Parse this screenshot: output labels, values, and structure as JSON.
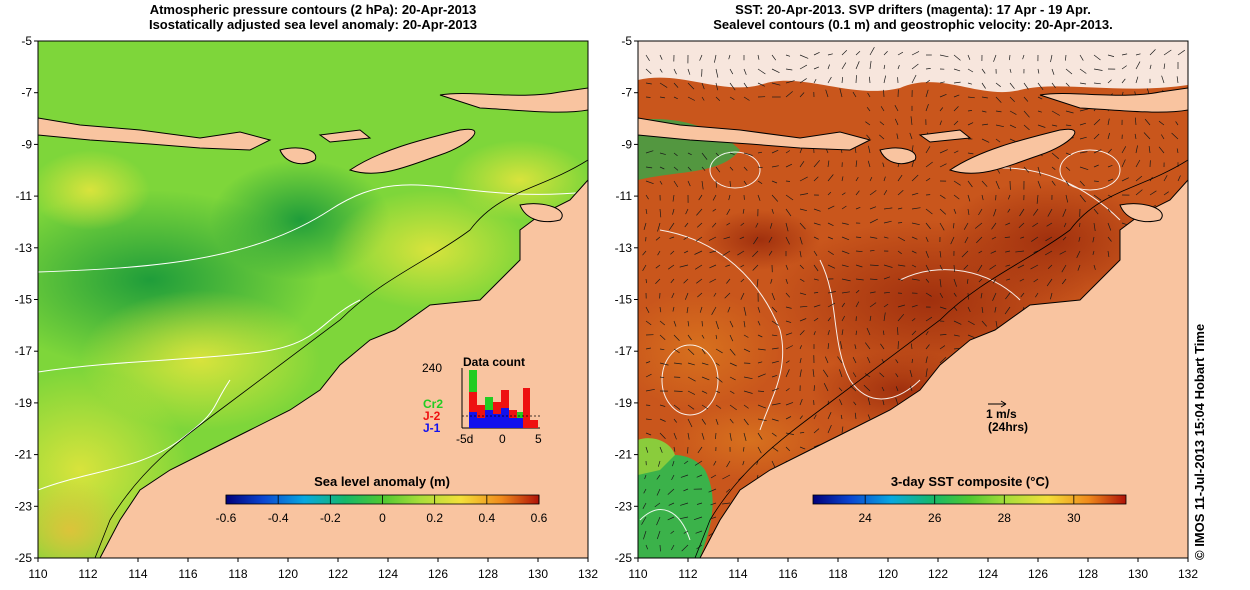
{
  "left_panel": {
    "title_line1": "Atmospheric pressure contours (2 hPa): 20-Apr-2013",
    "title_line2": "Isostatically adjusted sea level anomaly: 20-Apr-2013",
    "colorbar": {
      "title": "Sea level anomaly (m)",
      "range": [
        -0.6,
        0.6
      ],
      "ticks": [
        "-0.6",
        "-0.4",
        "-0.2",
        "0",
        "0.2",
        "0.4",
        "0.6"
      ],
      "tick_values": [
        -0.6,
        -0.4,
        -0.2,
        0,
        0.2,
        0.4,
        0.6
      ]
    },
    "inset": {
      "title": "Data count",
      "max_label": "240",
      "series_labels": [
        "Cr2",
        "J-2",
        "J-1"
      ],
      "series_colors": [
        "#22cc22",
        "#ee1111",
        "#1111ee"
      ],
      "x_ticks": [
        "-5d",
        "0",
        "5"
      ]
    }
  },
  "right_panel": {
    "title_line1": "SST: 20-Apr-2013. SVP drifters (magenta): 17 Apr - 19 Apr.",
    "title_line2": "Sealevel contours (0.1 m) and geostrophic velocity: 20-Apr-2013.",
    "colorbar": {
      "title": "3-day SST composite (°C)",
      "range": [
        22.5,
        31.5
      ],
      "ticks": [
        "24",
        "26",
        "28",
        "30"
      ],
      "tick_values": [
        24,
        26,
        28,
        30
      ]
    },
    "velocity_key": {
      "label": "1 m/s",
      "sublabel": "(24hrs)"
    }
  },
  "axes": {
    "lon_range": [
      110,
      132
    ],
    "lat_range": [
      -25,
      -5
    ],
    "lon_ticks": [
      "110",
      "112",
      "114",
      "116",
      "118",
      "120",
      "122",
      "124",
      "126",
      "128",
      "130",
      "132"
    ],
    "lat_ticks": [
      "-5",
      "-7",
      "-9",
      "-11",
      "-13",
      "-15",
      "-17",
      "-19",
      "-21",
      "-23",
      "-25"
    ]
  },
  "copyright": "© IMOS 11-Jul-2013 15:04 Hobart Time",
  "colors": {
    "land": "#f9c4a0",
    "coast": "#000000",
    "sla_low": "#23a13a",
    "sla_mid": "#66d23a",
    "sla_high": "#d6e63b",
    "sst_warm": "#c8561c",
    "sst_hot": "#a8320e",
    "sst_cool": "#38b24a"
  }
}
